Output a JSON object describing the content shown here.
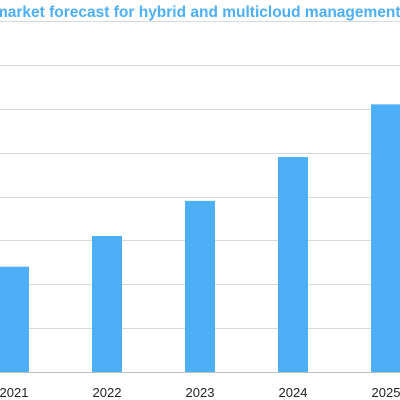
{
  "chart_data": {
    "type": "bar",
    "title": "market forecast for hybrid and multicloud management (",
    "categories": [
      "2021",
      "2022",
      "2023",
      "2024",
      "2025"
    ],
    "values": [
      2.4,
      3.1,
      3.9,
      4.9,
      6.1
    ],
    "ylim": [
      0,
      8
    ],
    "grid": true,
    "legend": "none",
    "xlabel": "",
    "ylabel": ""
  },
  "colors": {
    "bar": "#4DAFF7",
    "title": "#4DAFF7",
    "grid": "#D9D9D9",
    "axis": "#BFBFBF"
  }
}
